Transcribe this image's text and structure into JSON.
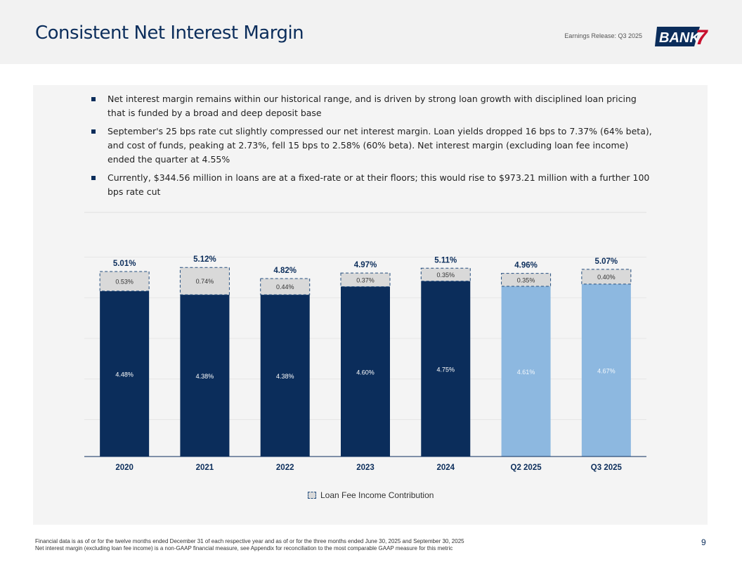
{
  "header": {
    "title": "Consistent Net Interest Margin",
    "release": "Earnings Release: Q3 2025",
    "logo_text": "BANK",
    "logo_mark": "7"
  },
  "bullets": [
    "Net interest margin remains within our historical range, and is driven by strong loan growth with disciplined loan pricing that is funded by a broad and deep deposit base",
    "September's 25 bps rate cut slightly compressed our net interest margin. Loan yields dropped 16 bps to 7.37% (64% beta), and cost of funds, peaking at 2.73%, fell 15 bps to 2.58% (60% beta). Net interest margin (excluding loan fee income) ended the quarter at 4.55%",
    "Currently, $344.56 million in loans are at a fixed-rate or at their floors; this would rise to $973.21 million with a further 100 bps rate cut"
  ],
  "chart_data": {
    "type": "bar",
    "stacked": true,
    "categories": [
      "2020",
      "2021",
      "2022",
      "2023",
      "2024",
      "Q2 2025",
      "Q3 2025"
    ],
    "series": [
      {
        "values": [
          4.48,
          4.38,
          4.38,
          4.6,
          4.75,
          4.61,
          4.67
        ],
        "labels": [
          "4.48%",
          "4.38%",
          "4.38%",
          "4.60%",
          "4.75%",
          "4.61%",
          "4.67%"
        ],
        "colors": [
          "#0b2d5b",
          "#0b2d5b",
          "#0b2d5b",
          "#0b2d5b",
          "#0b2d5b",
          "#8db8e0",
          "#8db8e0"
        ]
      },
      {
        "name": "Loan Fee Income Contribution",
        "values": [
          0.53,
          0.74,
          0.44,
          0.37,
          0.35,
          0.35,
          0.4
        ],
        "labels": [
          "0.53%",
          "0.74%",
          "0.44%",
          "0.37%",
          "0.35%",
          "0.35%",
          "0.40%"
        ],
        "color": "#d9d9d9",
        "border": "dashed"
      }
    ],
    "totals": [
      "5.01%",
      "5.12%",
      "4.82%",
      "4.97%",
      "5.11%",
      "4.96%",
      "5.07%"
    ],
    "ylim": [
      0,
      5.5
    ],
    "grid": true,
    "legend": "bottom-center"
  },
  "footnotes": [
    "Financial data is as of or for the twelve months ended December 31 of each respective year and as of or for the three months ended June 30, 2025 and September 30, 2025",
    "Net interest margin (excluding loan fee income) is a non-GAAP financial measure, see Appendix for reconciliation to the most comparable GAAP measure for this metric"
  ],
  "page_number": "9"
}
